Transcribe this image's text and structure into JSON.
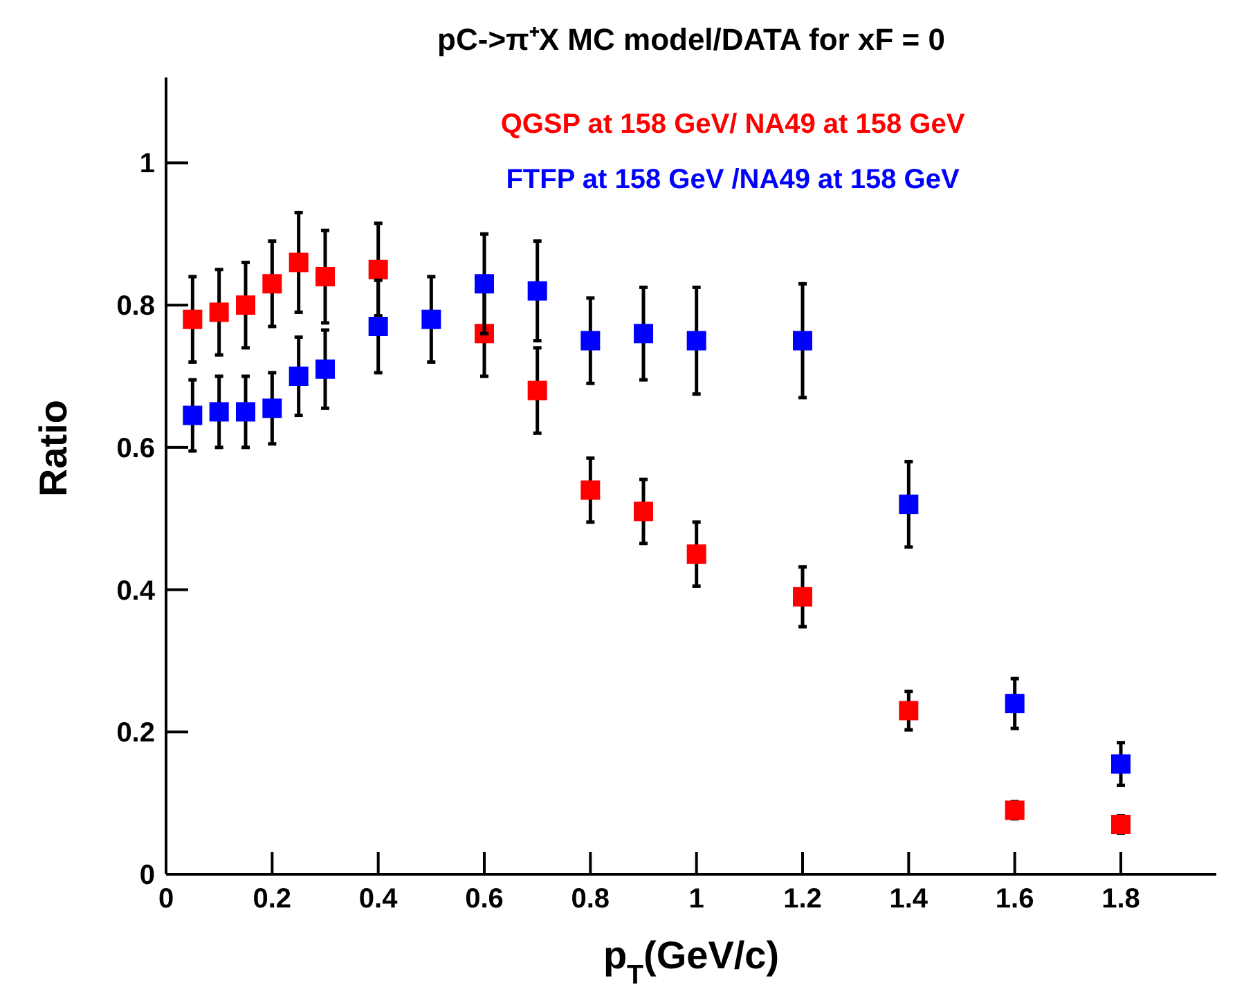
{
  "chart_data": {
    "type": "scatter",
    "title": "pC->π⁺X MC model/DATA for xF = 0",
    "xlabel": "p$_{T}$(GeV/c)",
    "ylabel": "Ratio",
    "xlim": [
      0,
      1.98
    ],
    "ylim": [
      0,
      1.12
    ],
    "xticks": [
      0,
      0.2,
      0.4,
      0.6,
      0.8,
      1,
      1.2,
      1.4,
      1.6,
      1.8
    ],
    "yticks": [
      0,
      0.2,
      0.4,
      0.6,
      0.8,
      1
    ],
    "marker": "square",
    "legend": "top",
    "grid": false,
    "series": [
      {
        "name": "QGSP at 158 GeV/ NA49 at 158 GeV",
        "color": "#ff0000",
        "x": [
          0.05,
          0.1,
          0.15,
          0.2,
          0.25,
          0.3,
          0.4,
          0.6,
          0.7,
          0.8,
          0.9,
          1,
          1.2,
          1.4,
          1.6,
          1.8
        ],
        "values": [
          0.78,
          0.79,
          0.8,
          0.83,
          0.86,
          0.84,
          0.85,
          0.76,
          0.68,
          0.54,
          0.51,
          0.45,
          0.39,
          0.23,
          0.09,
          0.07
        ],
        "errors": [
          0.06,
          0.06,
          0.06,
          0.06,
          0.07,
          0.065,
          0.065,
          0.06,
          0.06,
          0.045,
          0.045,
          0.045,
          0.042,
          0.027,
          0.012,
          0.012
        ]
      },
      {
        "name": "FTFP at 158 GeV /NA49 at 158 GeV",
        "color": "#0000ff",
        "x": [
          0.05,
          0.1,
          0.15,
          0.2,
          0.25,
          0.3,
          0.4,
          0.5,
          0.6,
          0.7,
          0.8,
          0.9,
          1,
          1.2,
          1.4,
          1.6,
          1.8
        ],
        "values": [
          0.645,
          0.65,
          0.65,
          0.655,
          0.7,
          0.71,
          0.77,
          0.78,
          0.83,
          0.82,
          0.75,
          0.76,
          0.75,
          0.75,
          0.52,
          0.24,
          0.155
        ],
        "errors": [
          0.05,
          0.05,
          0.05,
          0.05,
          0.055,
          0.055,
          0.065,
          0.06,
          0.07,
          0.07,
          0.06,
          0.065,
          0.075,
          0.08,
          0.06,
          0.035,
          0.03
        ]
      }
    ]
  }
}
